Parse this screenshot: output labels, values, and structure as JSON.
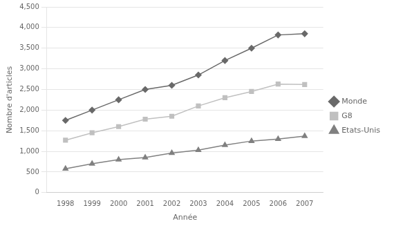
{
  "chart_data": {
    "type": "line",
    "x_label": "Année",
    "y_label": "Nombre d'articles",
    "x": [
      1998,
      1999,
      2000,
      2001,
      2002,
      2003,
      2004,
      2005,
      2006,
      2007
    ],
    "series": [
      {
        "name": "Monde",
        "color": "#696969",
        "marker": "diamond",
        "values": [
          1750,
          2000,
          2250,
          2500,
          2600,
          2850,
          3200,
          3500,
          3820,
          3850
        ]
      },
      {
        "name": "G8",
        "color": "#c0c0c0",
        "marker": "square",
        "values": [
          1270,
          1450,
          1600,
          1780,
          1850,
          2100,
          2300,
          2450,
          2630,
          2620
        ]
      },
      {
        "name": "Etats-Unis",
        "color": "#808080",
        "marker": "triangle",
        "values": [
          580,
          700,
          800,
          850,
          960,
          1030,
          1150,
          1250,
          1300,
          1370
        ]
      }
    ],
    "xlim": [
      1997.3,
      2007.7
    ],
    "xticks": [
      1998,
      1999,
      2000,
      2001,
      2002,
      2003,
      2004,
      2005,
      2006,
      2007
    ],
    "ylim": [
      0,
      4500
    ],
    "yticks": [
      0,
      500,
      {
        "value": 1000,
        "label": "1,000"
      },
      {
        "value": 1500,
        "label": "1,500"
      },
      {
        "value": 2000,
        "label": "2,000"
      },
      {
        "value": 2500,
        "label": "2,500"
      },
      {
        "value": 3000,
        "label": "3,000"
      },
      {
        "value": 3500,
        "label": "3,500"
      },
      {
        "value": 4000,
        "label": "4,000"
      },
      {
        "value": 4500,
        "label": "4,500"
      }
    ],
    "grid": "y",
    "legend": "right"
  }
}
